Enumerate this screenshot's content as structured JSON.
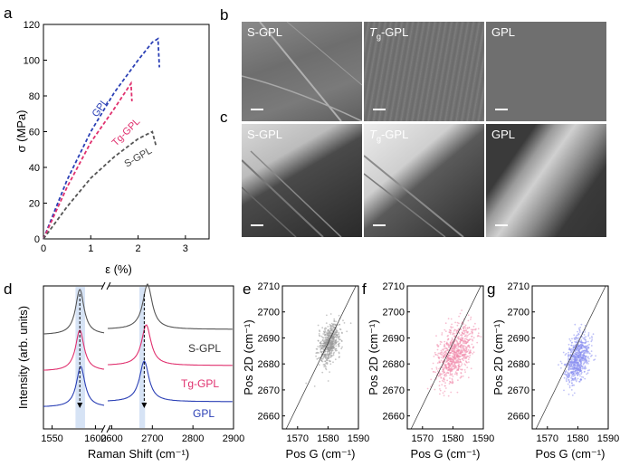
{
  "panel_letters": {
    "a": "a",
    "b": "b",
    "c": "c",
    "d": "d",
    "e": "e",
    "f": "f",
    "g": "g"
  },
  "colors": {
    "sgpl": "#555555",
    "tgpl": "#e0306e",
    "gpl": "#2a3fb5"
  },
  "sem": {
    "row_b": [
      {
        "label_pre": "S-GPL",
        "label_sub": ""
      },
      {
        "label_pre": "T",
        "label_sub": "g",
        "label_post": "-GPL"
      },
      {
        "label_pre": "GPL",
        "label_sub": ""
      }
    ],
    "row_c": [
      {
        "label_pre": "S-GPL",
        "label_sub": ""
      },
      {
        "label_pre": "T",
        "label_sub": "g",
        "label_post": "-GPL"
      },
      {
        "label_pre": "GPL",
        "label_sub": ""
      }
    ]
  },
  "chart_data": [
    {
      "id": "a",
      "type": "line",
      "xlabel": "ε (%)",
      "ylabel": "σ (MPa)",
      "xlim": [
        0,
        3.5
      ],
      "ylim": [
        0,
        120
      ],
      "xticks": [
        0,
        1,
        2,
        3
      ],
      "yticks": [
        0,
        20,
        40,
        60,
        80,
        100,
        120
      ],
      "series": [
        {
          "name": "GPL",
          "x": [
            0,
            0.5,
            1.0,
            1.5,
            2.0,
            2.3,
            2.42,
            2.45
          ],
          "y": [
            0,
            33,
            60,
            82,
            100,
            110,
            112,
            96
          ]
        },
        {
          "name": "Tg-GPL",
          "x": [
            0,
            0.5,
            1.0,
            1.5,
            1.75,
            1.85,
            1.87
          ],
          "y": [
            0,
            29,
            54,
            73,
            83,
            87,
            77
          ]
        },
        {
          "name": "S-GPL",
          "x": [
            0,
            0.5,
            1.0,
            1.5,
            2.0,
            2.3,
            2.38
          ],
          "y": [
            0,
            18,
            34,
            46,
            56,
            60,
            52
          ]
        }
      ],
      "annotations": [
        "GPL",
        "Tg-GPL",
        "S-GPL"
      ]
    },
    {
      "id": "d",
      "type": "line",
      "xlabel": "Raman Shift (cm⁻¹)",
      "ylabel": "Intensity (arb. units)",
      "xticks": [
        1550,
        1600,
        2600,
        2700,
        2800,
        2900
      ],
      "axis_break": [
        1610,
        2590
      ],
      "highlight_bands": [
        [
          1577,
          1588
        ],
        [
          2668,
          2682
        ]
      ],
      "series": [
        {
          "name": "S-GPL",
          "g_peak": 1582,
          "d2_peak": 2688
        },
        {
          "name": "Tg-GPL",
          "g_peak": 1582,
          "d2_peak": 2685
        },
        {
          "name": "GPL",
          "g_peak": 1583,
          "d2_peak": 2680
        }
      ],
      "labels": [
        "S-GPL",
        "Tg-GPL",
        "GPL"
      ]
    },
    {
      "id": "e",
      "type": "scatter",
      "xlabel": "Pos G (cm⁻¹)",
      "ylabel": "Pos 2D (cm⁻¹)",
      "xlim": [
        1565,
        1590
      ],
      "ylim": [
        2655,
        2710
      ],
      "xticks": [
        1570,
        1580,
        1590
      ],
      "yticks": [
        2660,
        2670,
        2680,
        2690,
        2700,
        2710
      ],
      "cluster": {
        "center": [
          1580.5,
          2688
        ],
        "spread": [
          1.8,
          3.5
        ],
        "color": "#999999",
        "n": 600
      }
    },
    {
      "id": "f",
      "type": "scatter",
      "xlabel": "Pos G (cm⁻¹)",
      "ylabel": "Pos 2D (cm⁻¹)",
      "xlim": [
        1565,
        1590
      ],
      "ylim": [
        2655,
        2710
      ],
      "xticks": [
        1570,
        1580,
        1590
      ],
      "yticks": [
        2660,
        2670,
        2680,
        2690,
        2700,
        2710
      ],
      "cluster": {
        "center": [
          1580.5,
          2684
        ],
        "spread": [
          3.0,
          5.0
        ],
        "color": "#f08aab",
        "n": 800
      }
    },
    {
      "id": "g",
      "type": "scatter",
      "xlabel": "Pos G (cm⁻¹)",
      "ylabel": "Pos 2D (cm⁻¹)",
      "xlim": [
        1565,
        1590
      ],
      "ylim": [
        2655,
        2710
      ],
      "xticks": [
        1570,
        1580,
        1590
      ],
      "yticks": [
        2660,
        2670,
        2680,
        2690,
        2700,
        2710
      ],
      "cluster": {
        "center": [
          1580,
          2682
        ],
        "spread": [
          2.0,
          4.2
        ],
        "color": "#8a8ff0",
        "n": 700
      }
    }
  ]
}
